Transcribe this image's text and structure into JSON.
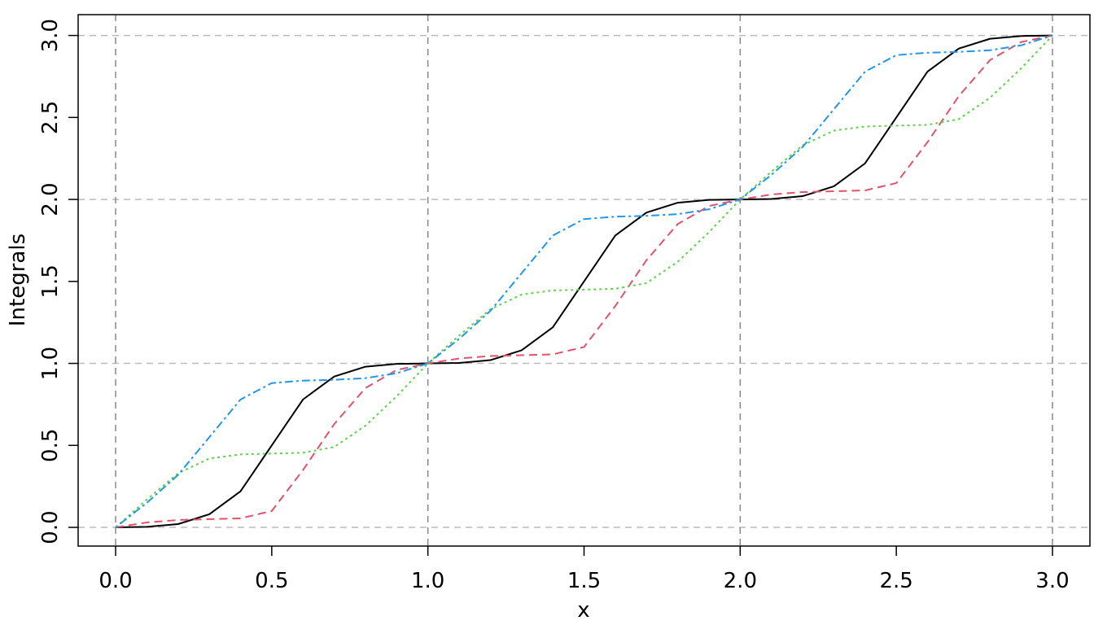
{
  "chart_data": {
    "type": "line",
    "xlabel": "x",
    "ylabel": "Integrals",
    "x": [
      0,
      0.1,
      0.2,
      0.3,
      0.4,
      0.5,
      0.6,
      0.7,
      0.8,
      0.9,
      1,
      1.1,
      1.2,
      1.3,
      1.4,
      1.5,
      1.6,
      1.7,
      1.8,
      1.9,
      2,
      2.1,
      2.2,
      2.3,
      2.4,
      2.5,
      2.6,
      2.7,
      2.8,
      2.9,
      3
    ],
    "series": [
      {
        "color": "#000000",
        "linestyle": "solid",
        "values": [
          0,
          0.003,
          0.02,
          0.08,
          0.22,
          0.5,
          0.78,
          0.92,
          0.98,
          0.997,
          1,
          1.003,
          1.02,
          1.08,
          1.22,
          1.5,
          1.78,
          1.92,
          1.98,
          1.997,
          2,
          2.003,
          2.02,
          2.08,
          2.22,
          2.5,
          2.78,
          2.92,
          2.98,
          2.997,
          3
        ]
      },
      {
        "color": "#df536b",
        "linestyle": "dashed",
        "values": [
          0,
          0.03,
          0.045,
          0.05,
          0.055,
          0.1,
          0.35,
          0.63,
          0.85,
          0.96,
          1,
          1.03,
          1.045,
          1.05,
          1.055,
          1.1,
          1.35,
          1.63,
          1.85,
          1.96,
          2,
          2.03,
          2.045,
          2.05,
          2.055,
          2.1,
          2.35,
          2.63,
          2.85,
          2.96,
          3
        ]
      },
      {
        "color": "#61d04f",
        "linestyle": "dotted",
        "values": [
          0,
          0.17,
          0.33,
          0.42,
          0.445,
          0.45,
          0.455,
          0.49,
          0.62,
          0.8,
          1,
          1.17,
          1.33,
          1.42,
          1.445,
          1.45,
          1.455,
          1.49,
          1.62,
          1.8,
          2,
          2.17,
          2.33,
          2.42,
          2.445,
          2.45,
          2.455,
          2.49,
          2.62,
          2.8,
          3
        ]
      },
      {
        "color": "#2297e6",
        "linestyle": "dotdash",
        "values": [
          0,
          0.15,
          0.32,
          0.55,
          0.78,
          0.88,
          0.895,
          0.9,
          0.91,
          0.94,
          1,
          1.15,
          1.32,
          1.55,
          1.78,
          1.88,
          1.895,
          1.9,
          1.91,
          1.94,
          2,
          2.15,
          2.32,
          2.55,
          2.78,
          2.88,
          2.895,
          2.9,
          2.91,
          2.94,
          3
        ]
      }
    ],
    "xlim": [
      -0.12,
      3.12
    ],
    "ylim": [
      -0.114,
      3.127
    ],
    "xticks": [
      {
        "value": 0,
        "label": "0.0"
      },
      {
        "value": 0.5,
        "label": "0.5"
      },
      {
        "value": 1,
        "label": "1.0"
      },
      {
        "value": 1.5,
        "label": "1.5"
      },
      {
        "value": 2,
        "label": "2.0"
      },
      {
        "value": 2.5,
        "label": "2.5"
      },
      {
        "value": 3,
        "label": "3.0"
      }
    ],
    "yticks": [
      {
        "value": 0,
        "label": "0.0"
      },
      {
        "value": 0.5,
        "label": "0.5"
      },
      {
        "value": 1,
        "label": "1.0"
      },
      {
        "value": 1.5,
        "label": "1.5"
      },
      {
        "value": 2,
        "label": "2.0"
      },
      {
        "value": 2.5,
        "label": "2.5"
      },
      {
        "value": 3,
        "label": "3.0"
      }
    ],
    "xgrid": [
      0,
      1,
      2,
      3
    ],
    "ygrid": [
      0,
      1,
      2,
      3
    ],
    "grid": true
  }
}
